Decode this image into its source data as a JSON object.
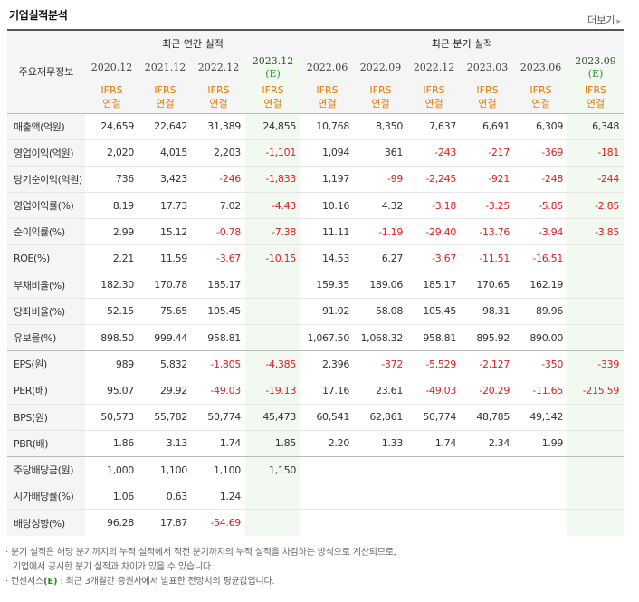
{
  "title": "기업실적분석",
  "more_label": "더보기",
  "header": {
    "row_label": "주요재무정보",
    "annual_group": "최근 연간 실적",
    "quarter_group": "최근 분기 실적",
    "ifrs_line1": "IFRS",
    "ifrs_line2": "연결",
    "est_mark": "(E)",
    "annual_periods": [
      "2020.12",
      "2021.12",
      "2022.12",
      "2023.12"
    ],
    "quarter_periods": [
      "2022.06",
      "2022.09",
      "2022.12",
      "2023.03",
      "2023.06",
      "2023.09"
    ]
  },
  "rows": [
    {
      "label": "매출액(억원)",
      "annual": [
        "24,659",
        "22,642",
        "31,389",
        "24,855"
      ],
      "quarter": [
        "10,768",
        "8,350",
        "7,637",
        "6,691",
        "6,309",
        "6,348"
      ]
    },
    {
      "label": "영업이익(억원)",
      "annual": [
        "2,020",
        "4,015",
        "2,203",
        "-1,101"
      ],
      "quarter": [
        "1,094",
        "361",
        "-243",
        "-217",
        "-369",
        "-181"
      ]
    },
    {
      "label": "당기순이익(억원)",
      "annual": [
        "736",
        "3,423",
        "-246",
        "-1,833"
      ],
      "quarter": [
        "1,197",
        "-99",
        "-2,245",
        "-921",
        "-248",
        "-244"
      ]
    },
    {
      "label": "영업이익률(%)",
      "annual": [
        "8.19",
        "17.73",
        "7.02",
        "-4.43"
      ],
      "quarter": [
        "10.16",
        "4.32",
        "-3.18",
        "-3.25",
        "-5.85",
        "-2.85"
      ]
    },
    {
      "label": "순이익률(%)",
      "annual": [
        "2.99",
        "15.12",
        "-0.78",
        "-7.38"
      ],
      "quarter": [
        "11.11",
        "-1.19",
        "-29.40",
        "-13.76",
        "-3.94",
        "-3.85"
      ]
    },
    {
      "label": "ROE(%)",
      "annual": [
        "2.21",
        "11.59",
        "-3.67",
        "-10.15"
      ],
      "quarter": [
        "14.53",
        "6.27",
        "-3.67",
        "-11.51",
        "-16.51",
        ""
      ]
    },
    {
      "label": "부채비율(%)",
      "annual": [
        "182.30",
        "170.78",
        "185.17",
        ""
      ],
      "quarter": [
        "159.35",
        "189.06",
        "185.17",
        "170.65",
        "162.19",
        ""
      ]
    },
    {
      "label": "당좌비율(%)",
      "annual": [
        "52.15",
        "75.65",
        "105.45",
        ""
      ],
      "quarter": [
        "91.02",
        "58.08",
        "105.45",
        "98.31",
        "89.96",
        ""
      ]
    },
    {
      "label": "유보율(%)",
      "annual": [
        "898.50",
        "999.44",
        "958.81",
        ""
      ],
      "quarter": [
        "1,067.50",
        "1,068.32",
        "958.81",
        "895.92",
        "890.00",
        ""
      ]
    },
    {
      "label": "EPS(원)",
      "annual": [
        "989",
        "5,832",
        "-1,805",
        "-4,385"
      ],
      "quarter": [
        "2,396",
        "-372",
        "-5,529",
        "-2,127",
        "-350",
        "-339"
      ]
    },
    {
      "label": "PER(배)",
      "annual": [
        "95.07",
        "29.92",
        "-49.03",
        "-19.13"
      ],
      "quarter": [
        "17.16",
        "23.61",
        "-49.03",
        "-20.29",
        "-11.65",
        "-215.59"
      ]
    },
    {
      "label": "BPS(원)",
      "annual": [
        "50,573",
        "55,782",
        "50,774",
        "45,473"
      ],
      "quarter": [
        "60,541",
        "62,861",
        "50,774",
        "48,785",
        "49,142",
        ""
      ]
    },
    {
      "label": "PBR(배)",
      "annual": [
        "1.86",
        "3.13",
        "1.74",
        "1.85"
      ],
      "quarter": [
        "2.20",
        "1.33",
        "1.74",
        "2.34",
        "1.99",
        ""
      ]
    },
    {
      "label": "주당배당금(원)",
      "annual": [
        "1,000",
        "1,100",
        "1,100",
        "1,150"
      ],
      "quarter": [
        "",
        "",
        "",
        "",
        "",
        ""
      ]
    },
    {
      "label": "시가배당률(%)",
      "annual": [
        "1.06",
        "0.63",
        "1.24",
        ""
      ],
      "quarter": [
        "",
        "",
        "",
        "",
        "",
        ""
      ]
    },
    {
      "label": "배당성향(%)",
      "annual": [
        "96.28",
        "17.87",
        "-54.69",
        ""
      ],
      "quarter": [
        "",
        "",
        "",
        "",
        "",
        ""
      ]
    }
  ],
  "notes": {
    "line1": "· 분기 실적은 해당 분기까지의 누적 실적에서 직전 분기까지의 누적 실적을 차감하는 방식으로 계산되므로,",
    "line2": "기업에서 공시한 분기 실적과 차이가 있을 수 있습니다.",
    "line3_pre": "· 컨센서스",
    "line3_mark": "(E)",
    "line3_post": " : 최근 3개월간 증권사에서 발표한 전망치의 평균값입니다."
  },
  "colors": {
    "negative": "#e02020",
    "ifrs": "#e87a00",
    "estimate_bg": "#f1f9f1",
    "estimate_text": "#2f8f2f"
  }
}
